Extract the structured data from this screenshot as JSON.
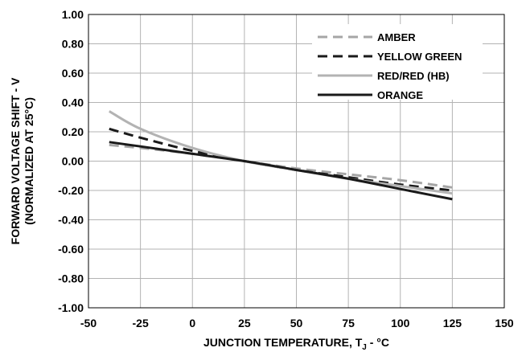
{
  "chart_data": {
    "type": "line",
    "title": "",
    "xlabel": "JUNCTION TEMPERATURE, T",
    "xlabel_subscript": "J",
    "xlabel_suffix": " - °C",
    "ylabel_line1": "FORWARD VOLTAGE SHIFT - V",
    "ylabel_line2": "(NORMALIZED AT 25°C)",
    "xlim": [
      -50,
      150
    ],
    "ylim": [
      -1.0,
      1.0
    ],
    "x_ticks": [
      -50,
      -25,
      0,
      25,
      50,
      75,
      100,
      125,
      150
    ],
    "x_tick_labels": [
      "-50",
      "-25",
      "0",
      "25",
      "50",
      "75",
      "100",
      "125",
      "150"
    ],
    "y_ticks": [
      -1.0,
      -0.8,
      -0.6,
      -0.4,
      -0.2,
      0.0,
      0.2,
      0.4,
      0.6,
      0.8,
      1.0
    ],
    "y_tick_labels": [
      "-1.00",
      "-0.80",
      "-0.60",
      "-0.40",
      "-0.20",
      "0.00",
      "0.20",
      "0.40",
      "0.60",
      "0.80",
      "1.00"
    ],
    "grid": true,
    "legend_position": "top-right",
    "series": [
      {
        "name": "AMBER",
        "color": "#a6a6a6",
        "dash": "dashed",
        "x": [
          -40,
          -25,
          0,
          25,
          50,
          75,
          100,
          125
        ],
        "y": [
          0.11,
          0.09,
          0.05,
          0.0,
          -0.05,
          -0.09,
          -0.13,
          -0.18
        ]
      },
      {
        "name": "YELLOW GREEN",
        "color": "#1a1a1a",
        "dash": "dashed",
        "x": [
          -40,
          -25,
          0,
          25,
          50,
          75,
          100,
          125
        ],
        "y": [
          0.22,
          0.16,
          0.07,
          0.0,
          -0.06,
          -0.11,
          -0.16,
          -0.2
        ]
      },
      {
        "name": "RED/RED (HB)",
        "color": "#b3b3b3",
        "dash": "solid",
        "x": [
          -40,
          -25,
          0,
          25,
          50,
          75,
          100,
          125
        ],
        "y": [
          0.34,
          0.22,
          0.09,
          0.0,
          -0.06,
          -0.12,
          -0.17,
          -0.22
        ]
      },
      {
        "name": "ORANGE",
        "color": "#1a1a1a",
        "dash": "solid",
        "x": [
          -40,
          -25,
          0,
          25,
          50,
          75,
          100,
          125
        ],
        "y": [
          0.13,
          0.1,
          0.05,
          0.0,
          -0.06,
          -0.12,
          -0.19,
          -0.26
        ]
      }
    ]
  }
}
